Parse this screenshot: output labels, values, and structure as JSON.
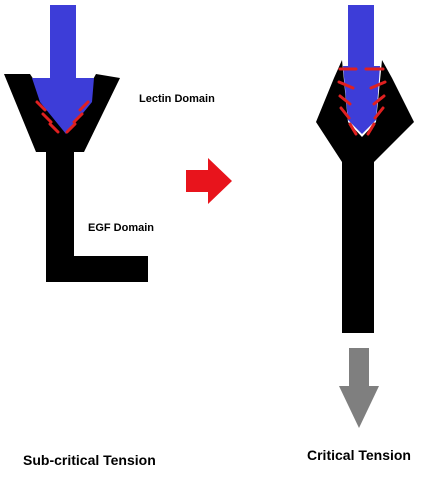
{
  "labels": {
    "lectin_domain": "Lectin Domain",
    "egf_domain": "EGF Domain",
    "sub_critical": "Sub-critical Tension",
    "critical": "Critical Tension"
  },
  "colors": {
    "ligand": "#3d3dd8",
    "receptor": "#000000",
    "bond": "#e02020",
    "transition_arrow": "#e8141c",
    "force_arrow": "#7f7f7f",
    "background": "#ffffff"
  }
}
